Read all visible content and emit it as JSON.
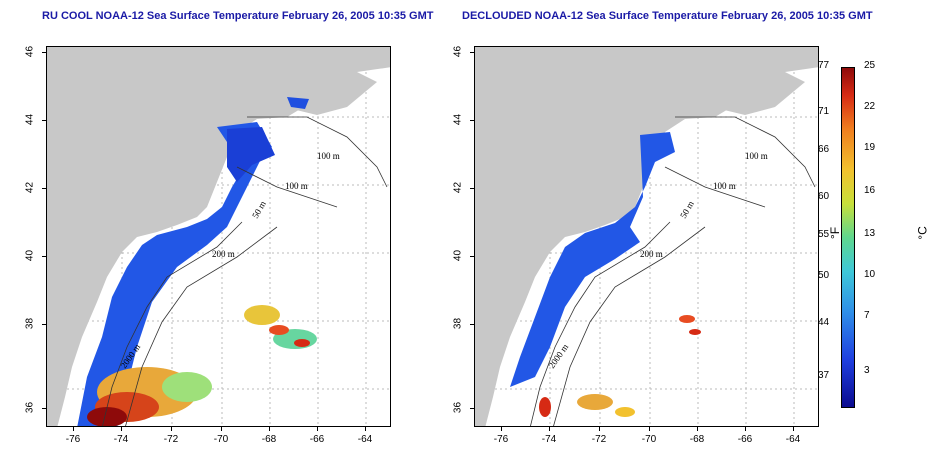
{
  "titles": {
    "left": "RU COOL NOAA-12 Sea Surface Temperature February 26, 2005 10:35 GMT",
    "right": "DECLOUDED NOAA-12 Sea Surface Temperature February 26, 2005 10:35 GMT"
  },
  "axes": {
    "x_ticks": [
      "-76",
      "-74",
      "-72",
      "-70",
      "-68",
      "-66",
      "-64"
    ],
    "y_ticks": [
      "36",
      "38",
      "40",
      "42",
      "44",
      "46"
    ]
  },
  "contour_labels": [
    "100 m",
    "100 m",
    "50 m",
    "200 m",
    "2000 m"
  ],
  "colorbar": {
    "fahrenheit_ticks": [
      "77",
      "71",
      "66",
      "60",
      "55",
      "50",
      "44",
      "37"
    ],
    "celsius_ticks": [
      "25",
      "22",
      "19",
      "16",
      "13",
      "10",
      "7",
      "3"
    ],
    "unit_f": "°F",
    "unit_c": "°C"
  },
  "colors": {
    "land": "#c8c8c8",
    "cold_water": "#1f4fe0",
    "warm_water": "#e04a1a",
    "title": "#1a1aa6"
  }
}
